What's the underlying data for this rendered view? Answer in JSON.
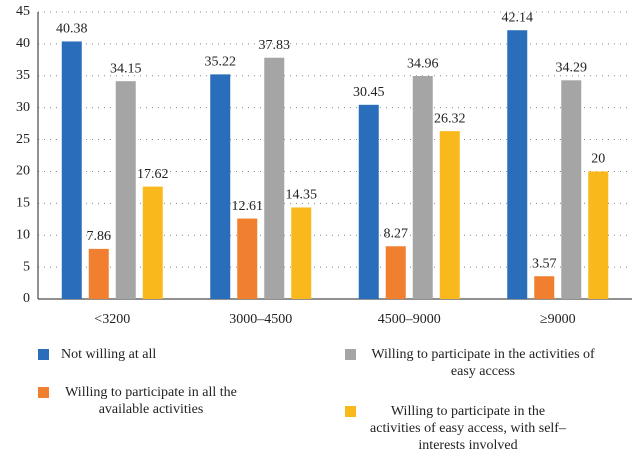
{
  "chart_data": {
    "type": "bar",
    "categories": [
      "<3200",
      "3000–4500",
      "4500–9000",
      "≥9000"
    ],
    "series": [
      {
        "name": "Not willing at all",
        "color": "#2a6ebb",
        "values": [
          40.38,
          35.22,
          30.45,
          42.14
        ]
      },
      {
        "name": "Willing to participate in all the available activities",
        "color": "#f07f2f",
        "values": [
          7.86,
          12.61,
          8.27,
          3.57
        ]
      },
      {
        "name": "Willing to participate in the activities of easy access",
        "color": "#a5a5a5",
        "values": [
          34.15,
          37.83,
          34.96,
          34.29
        ]
      },
      {
        "name": "Willing to participate in the activities of easy access, with self–interests involved",
        "color": "#f9b81b",
        "values": [
          17.62,
          14.35,
          26.32,
          20
        ]
      }
    ],
    "ylim": [
      0,
      45
    ],
    "yticks": [
      0,
      5,
      10,
      15,
      20,
      25,
      30,
      35,
      40,
      45
    ],
    "grid": true
  }
}
